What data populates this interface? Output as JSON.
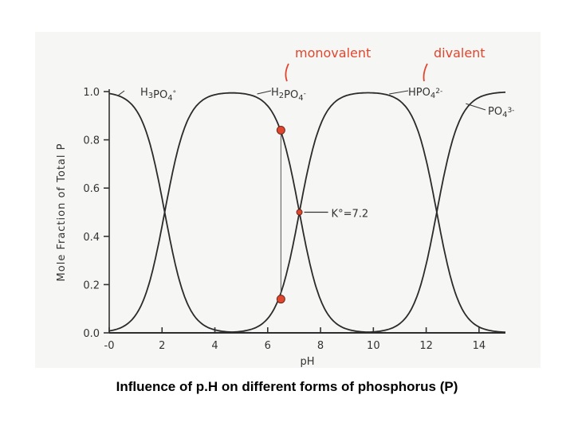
{
  "caption": "Influence of p.H on different forms of phosphorus (P)",
  "chart_data": {
    "type": "line",
    "title": "",
    "xlabel": "pH",
    "ylabel": "Mole Fraction of Total P",
    "xlim": [
      0,
      15
    ],
    "ylim": [
      0,
      1
    ],
    "xticks": [
      0,
      2,
      4,
      6,
      8,
      10,
      12,
      14
    ],
    "xtick_labels": [
      "-0",
      "2",
      "4",
      "6",
      "8",
      "10",
      "12",
      "14"
    ],
    "yticks": [
      0,
      0.2,
      0.4,
      0.6,
      0.8,
      1.0
    ],
    "ytick_labels": [
      "0.0",
      "0.2",
      "0.4",
      "0.6",
      "0.8",
      "1.0"
    ],
    "pKa": [
      2.1,
      7.2,
      12.4
    ],
    "species": [
      {
        "label": "H3PO4",
        "sup": "°"
      },
      {
        "label": "H2PO4",
        "sup": "-"
      },
      {
        "label": "HPO4",
        "sup": "2-"
      },
      {
        "label": "PO4",
        "sup": "3-"
      }
    ],
    "annotations": {
      "monovalent": "monovalent",
      "divalent": "divalent",
      "k_label": "K°=7.2"
    },
    "highlighted_points": [
      {
        "x": 6.5,
        "y": 0.84
      },
      {
        "x": 6.5,
        "y": 0.14
      },
      {
        "x": 7.2,
        "y": 0.5
      }
    ],
    "colors": {
      "curve": "#2b2b2b",
      "highlight": "#e0462e"
    }
  }
}
